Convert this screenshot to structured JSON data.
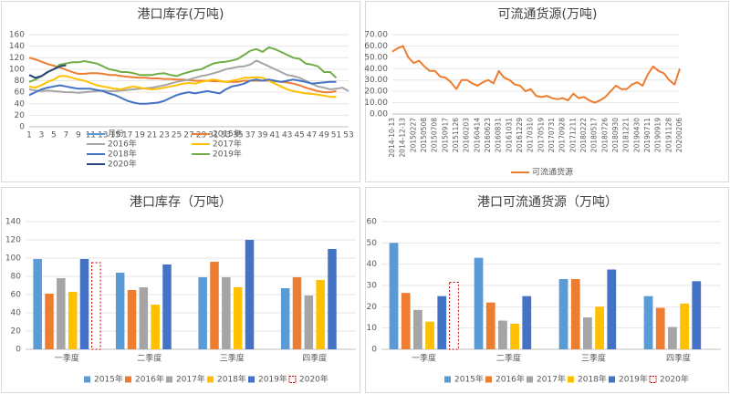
{
  "chart_data": [
    {
      "type": "line",
      "title": "港口库存(万吨)",
      "categories": [
        1,
        null,
        3,
        null,
        5,
        null,
        7,
        null,
        9,
        null,
        11,
        null,
        13,
        null,
        15,
        null,
        17,
        null,
        19,
        null,
        21,
        null,
        23,
        null,
        25,
        null,
        27,
        null,
        29,
        null,
        31,
        null,
        33,
        null,
        35,
        null,
        37,
        null,
        39,
        null,
        41,
        null,
        43,
        null,
        45,
        null,
        47,
        null,
        49,
        null,
        51,
        null,
        53
      ],
      "ylim": [
        0,
        160
      ],
      "yticks": [
        0,
        20,
        40,
        60,
        80,
        100,
        120,
        140,
        160
      ],
      "grid": true,
      "legend": "bottom",
      "series": [
        {
          "name": "月份",
          "color": "#5b9bd5",
          "values": [
            null,
            null,
            null,
            null,
            null,
            null,
            null,
            null,
            null,
            null,
            null,
            null,
            null,
            null,
            null,
            null,
            null,
            null,
            null,
            null,
            null,
            null,
            null,
            null,
            null,
            null,
            null,
            null,
            null,
            null,
            null,
            null,
            null,
            null,
            null,
            null,
            null,
            null,
            null,
            null,
            null,
            null,
            null,
            null,
            null,
            null,
            null,
            null,
            null,
            null,
            null,
            null,
            null
          ]
        },
        {
          "name": "2015年",
          "color": "#ed7d31",
          "values": [
            120,
            117,
            113,
            109,
            106,
            103,
            99,
            95,
            92,
            92,
            93,
            93,
            92,
            90,
            90,
            88,
            87,
            86,
            85,
            85,
            84,
            84,
            83,
            83,
            82,
            82,
            81,
            80,
            80,
            80,
            79,
            79,
            78,
            78,
            78,
            80,
            80,
            80,
            80,
            80,
            79,
            78,
            77,
            75,
            72,
            68,
            65,
            62,
            60,
            60,
            62,
            null,
            null
          ]
        },
        {
          "name": "2016年",
          "color": "#a5a5a5",
          "values": [
            65,
            63,
            62,
            63,
            62,
            61,
            60,
            60,
            59,
            60,
            61,
            62,
            63,
            62,
            62,
            63,
            64,
            65,
            66,
            67,
            68,
            70,
            72,
            75,
            78,
            80,
            82,
            85,
            88,
            90,
            93,
            96,
            100,
            102,
            104,
            105,
            108,
            115,
            110,
            105,
            100,
            95,
            90,
            88,
            85,
            80,
            75,
            70,
            68,
            65,
            66,
            68,
            62
          ]
        },
        {
          "name": "2017年",
          "color": "#ffc000",
          "values": [
            70,
            68,
            72,
            78,
            82,
            88,
            88,
            85,
            82,
            80,
            76,
            72,
            70,
            68,
            66,
            65,
            68,
            70,
            68,
            66,
            65,
            66,
            68,
            70,
            72,
            75,
            76,
            75,
            78,
            80,
            82,
            80,
            78,
            80,
            82,
            85,
            85,
            86,
            85,
            80,
            75,
            70,
            65,
            62,
            60,
            58,
            57,
            56,
            54,
            52,
            52,
            null,
            null
          ]
        },
        {
          "name": "2018年",
          "color": "#4472c4",
          "values": [
            55,
            60,
            65,
            68,
            70,
            72,
            70,
            68,
            66,
            66,
            66,
            64,
            62,
            58,
            55,
            50,
            45,
            42,
            40,
            40,
            41,
            42,
            45,
            50,
            55,
            58,
            60,
            58,
            60,
            62,
            60,
            58,
            65,
            70,
            72,
            75,
            80,
            82,
            80,
            82,
            80,
            78,
            80,
            82,
            80,
            78,
            75,
            76,
            77,
            78,
            78,
            null,
            null
          ]
        },
        {
          "name": "2019年",
          "color": "#70ad47",
          "values": [
            78,
            82,
            88,
            95,
            100,
            108,
            110,
            112,
            112,
            114,
            112,
            110,
            105,
            100,
            98,
            95,
            95,
            93,
            90,
            90,
            90,
            92,
            93,
            90,
            88,
            92,
            95,
            98,
            100,
            105,
            110,
            112,
            113,
            115,
            118,
            125,
            132,
            135,
            130,
            138,
            135,
            130,
            125,
            120,
            118,
            110,
            108,
            105,
            95,
            95,
            85,
            null,
            null
          ]
        },
        {
          "name": "2020年",
          "color": "#264478",
          "values": [
            90,
            85,
            88,
            95,
            100,
            105,
            107,
            null,
            null,
            null,
            null,
            null,
            null,
            null,
            null,
            null,
            null,
            null,
            null,
            null,
            null,
            null,
            null,
            null,
            null,
            null,
            null,
            null,
            null,
            null,
            null,
            null,
            null,
            null,
            null,
            null,
            null,
            null,
            null,
            null,
            null,
            null,
            null,
            null,
            null,
            null,
            null,
            null,
            null,
            null,
            null,
            null,
            null
          ]
        }
      ]
    },
    {
      "type": "line",
      "title": "可流通货源(万吨)",
      "categories": [
        "2014-10-13",
        null,
        "2014-12-13",
        null,
        "20150227",
        null,
        "20150508",
        null,
        "20150708",
        null,
        "20150917",
        null,
        "20151126",
        null,
        "20160203",
        null,
        "20160414",
        null,
        "20160623",
        null,
        "20160831",
        null,
        "20161031",
        null,
        "20161229",
        null,
        "20170310",
        null,
        "20170519",
        null,
        "20170731",
        null,
        "20170928",
        null,
        "20171211",
        null,
        "20180222",
        null,
        "20180517",
        null,
        "20180726",
        null,
        "20180930",
        null,
        "20181221",
        null,
        "20190430",
        null,
        "20190711",
        null,
        "20190919",
        null,
        "20191128",
        null,
        "20200206"
      ],
      "ylim": [
        0,
        70
      ],
      "yticks": [
        {
          "value": 0,
          "label": "0.00"
        },
        {
          "value": 10,
          "label": "10.00"
        },
        {
          "value": 20,
          "label": "20.00"
        },
        {
          "value": 30,
          "label": "30.00"
        },
        {
          "value": 40,
          "label": "40.00"
        },
        {
          "value": 50,
          "label": "50.00"
        },
        {
          "value": 60,
          "label": "60.00"
        },
        {
          "value": 70,
          "label": "70.00"
        }
      ],
      "grid": true,
      "legend": "bottom",
      "series": [
        {
          "name": "可流通货源",
          "color": "#ed7d31",
          "values": [
            55,
            58,
            60,
            50,
            45,
            47,
            42,
            38,
            38,
            33,
            32,
            28,
            22,
            30,
            30,
            27,
            25,
            28,
            30,
            27,
            38,
            32,
            30,
            26,
            25,
            20,
            22,
            16,
            15,
            16,
            14,
            13,
            14,
            12,
            18,
            14,
            15,
            12,
            10,
            12,
            15,
            20,
            25,
            22,
            22,
            26,
            28,
            25,
            35,
            42,
            38,
            36,
            30,
            26,
            40
          ]
        }
      ]
    },
    {
      "type": "bar",
      "title": "港口库存（万吨）",
      "categories": [
        "一季度",
        "二季度",
        "三季度",
        "四季度"
      ],
      "ylim": [
        0,
        140
      ],
      "yticks": [
        0,
        20,
        40,
        60,
        80,
        100,
        120,
        140
      ],
      "grid": true,
      "legend": "bottom",
      "series": [
        {
          "name": "2015年",
          "color": "#5b9bd5",
          "values": [
            99,
            84,
            79,
            67
          ]
        },
        {
          "name": "2016年",
          "color": "#ed7d31",
          "values": [
            61,
            65,
            96,
            79
          ]
        },
        {
          "name": "2017年",
          "color": "#a5a5a5",
          "values": [
            78,
            68,
            79,
            59
          ]
        },
        {
          "name": "2018年",
          "color": "#ffc000",
          "values": [
            63,
            49,
            68,
            76
          ]
        },
        {
          "name": "2019年",
          "color": "#4472c4",
          "values": [
            99,
            93,
            120,
            110
          ]
        },
        {
          "name": "2020年",
          "color": "#c00000",
          "dashed": true,
          "values": [
            95,
            null,
            null,
            null
          ]
        }
      ]
    },
    {
      "type": "bar",
      "title": "港口可流通货源（万吨）",
      "categories": [
        "一季度",
        "二季度",
        "三季度",
        "四季度"
      ],
      "ylim": [
        0,
        60
      ],
      "yticks": [
        0,
        10,
        20,
        30,
        40,
        50,
        60
      ],
      "grid": true,
      "legend": "bottom",
      "series": [
        {
          "name": "2015年",
          "color": "#5b9bd5",
          "values": [
            50,
            43,
            33,
            25
          ]
        },
        {
          "name": "2016年",
          "color": "#ed7d31",
          "values": [
            26.5,
            22,
            33,
            19.5
          ]
        },
        {
          "name": "2017年",
          "color": "#a5a5a5",
          "values": [
            18.5,
            13.5,
            15,
            10.5
          ]
        },
        {
          "name": "2018年",
          "color": "#ffc000",
          "values": [
            13,
            12,
            20,
            21.5
          ]
        },
        {
          "name": "2019年",
          "color": "#4472c4",
          "values": [
            25,
            25,
            37.5,
            32
          ]
        },
        {
          "name": "2020年",
          "color": "#c00000",
          "dashed": true,
          "values": [
            31.5,
            null,
            null,
            null
          ]
        }
      ]
    }
  ]
}
